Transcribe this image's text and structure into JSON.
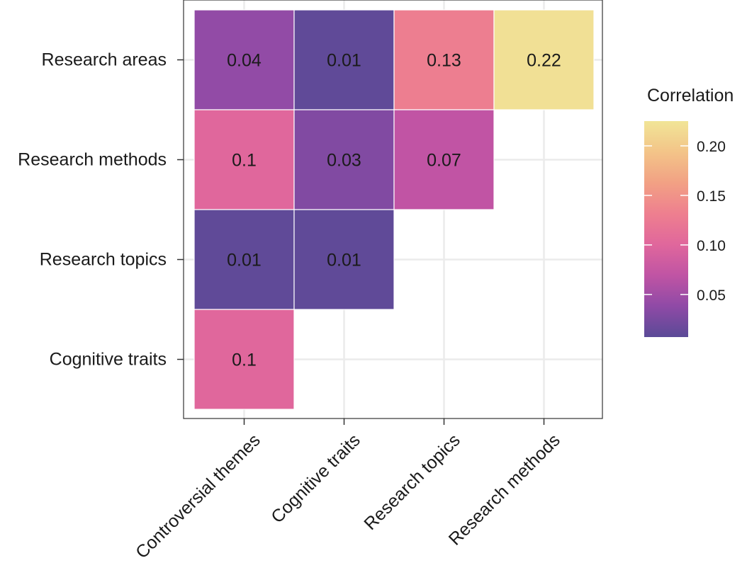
{
  "chart_data": {
    "type": "heatmap",
    "title": "",
    "xlabel": "",
    "ylabel": "",
    "rows": [
      "Research areas",
      "Research methods",
      "Research topics",
      "Cognitive traits"
    ],
    "columns": [
      "Controversial themes",
      "Cognitive traits",
      "Research topics",
      "Research methods"
    ],
    "values": [
      [
        0.04,
        0.01,
        0.13,
        0.22
      ],
      [
        0.1,
        0.03,
        0.07,
        null
      ],
      [
        0.01,
        0.01,
        null,
        null
      ],
      [
        0.1,
        null,
        null,
        null
      ]
    ],
    "cell_labels": [
      [
        "0.04",
        "0.01",
        "0.13",
        "0.22"
      ],
      [
        "0.1",
        "0.03",
        "0.07",
        null
      ],
      [
        "0.01",
        "0.01",
        null,
        null
      ],
      [
        "0.1",
        null,
        null,
        null
      ]
    ],
    "legend": {
      "title": "Correlation",
      "placement": "right",
      "ticks": [
        0.05,
        0.1,
        0.15,
        0.2
      ],
      "tick_labels": [
        "0.05",
        "0.10",
        "0.15",
        "0.20"
      ],
      "range": [
        0.007,
        0.225
      ]
    },
    "colormap": [
      "#5b4a97",
      "#8f4aa6",
      "#c054a4",
      "#e0679c",
      "#ee7f8f",
      "#f2a184",
      "#f3c488",
      "#f1e597"
    ],
    "grid": true,
    "panel_background": "#ffffff",
    "grid_color": "#ebebeb"
  }
}
